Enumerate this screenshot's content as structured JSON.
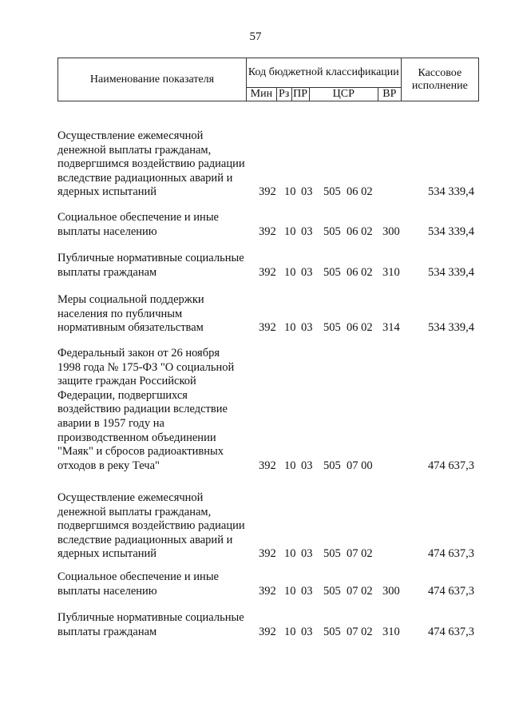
{
  "page_number": "57",
  "header": {
    "name": "Наименование показателя",
    "code_group": "Код бюджетной классификации",
    "min": "Мин",
    "rz": "Рз",
    "pr": "ПР",
    "csr": "ЦСР",
    "vr": "ВР",
    "amount": "Кассовое исполнение"
  },
  "rows": [
    {
      "name": "Осуществление ежемесячной\nденежной выплаты гражданам,\nподвергшимся воздействию радиации\nвследствие радиационных аварий и\nядерных испытаний",
      "min": "392",
      "rz": "10",
      "pr": "03",
      "csr": "505  06 02",
      "vr": "",
      "amount": "534 339,4"
    },
    {
      "name": "Социальное обеспечение и иные\nвыплаты населению",
      "min": "392",
      "rz": "10",
      "pr": "03",
      "csr": "505  06 02",
      "vr": "300",
      "amount": "534 339,4"
    },
    {
      "name": "Публичные нормативные социальные\nвыплаты гражданам",
      "min": "392",
      "rz": "10",
      "pr": "03",
      "csr": "505  06 02",
      "vr": "310",
      "amount": "534 339,4"
    },
    {
      "name": "Меры социальной поддержки\nнаселения по публичным\nнормативным обязательствам",
      "min": "392",
      "rz": "10",
      "pr": "03",
      "csr": "505  06 02",
      "vr": "314",
      "amount": "534 339,4"
    },
    {
      "name": "Федеральный закон от 26 ноября\n1998 года № 175-ФЗ \"О социальной\nзащите граждан Российской\nФедерации, подвергшихся\nвоздействию радиации вследствие\nаварии в 1957 году на\nпроизводственном объединении\n\"Маяк\" и сбросов радиоактивных\nотходов в реку Теча\"",
      "min": "392",
      "rz": "10",
      "pr": "03",
      "csr": "505  07 00",
      "vr": "",
      "amount": "474 637,3"
    },
    {
      "name": "Осуществление ежемесячной\nденежной выплаты гражданам,\nподвергшимся воздействию радиации\nвследствие радиационных аварий и\nядерных испытаний",
      "min": "392",
      "rz": "10",
      "pr": "03",
      "csr": "505  07 02",
      "vr": "",
      "amount": "474 637,3"
    },
    {
      "name": "Социальное обеспечение и иные\nвыплаты населению",
      "min": "392",
      "rz": "10",
      "pr": "03",
      "csr": "505  07 02",
      "vr": "300",
      "amount": "474 637,3"
    },
    {
      "name": "Публичные нормативные социальные\nвыплаты гражданам",
      "min": "392",
      "rz": "10",
      "pr": "03",
      "csr": "505  07 02",
      "vr": "310",
      "amount": "474 637,3"
    }
  ]
}
